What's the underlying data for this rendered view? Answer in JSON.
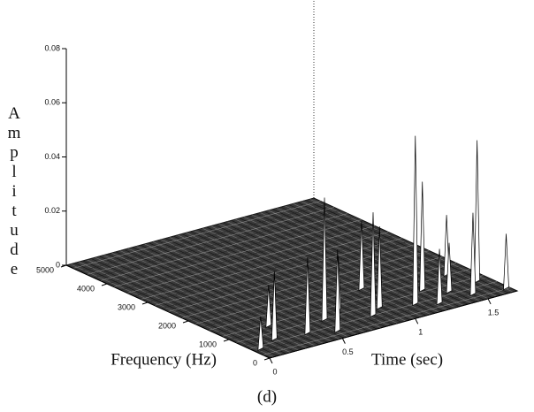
{
  "chart_data": {
    "type": "waterfall3d",
    "z_label": "Amplitude",
    "y_label": "Frequency (Hz)",
    "x_label": "Time (sec)",
    "caption": "(d)",
    "xlim": [
      0,
      1.7
    ],
    "xticks": [
      0,
      0.5,
      1,
      1.5
    ],
    "ylim": [
      0,
      5000
    ],
    "yticks": [
      0,
      1000,
      2000,
      3000,
      4000,
      5000
    ],
    "zlim": [
      0,
      0.08
    ],
    "zticks": [
      0,
      0.02,
      0.04,
      0.06,
      0.08
    ],
    "x": [
      1.14,
      1.62,
      1.48,
      1.3,
      0.85,
      0.95,
      0.55,
      0.6,
      0.4,
      0.2,
      1.05,
      1.25,
      1.55,
      1.68,
      0.75,
      0.3,
      1.4,
      0.05
    ],
    "y": [
      500,
      700,
      300,
      900,
      500,
      700,
      300,
      800,
      500,
      600,
      1500,
      300,
      1200,
      200,
      1000,
      1100,
      600,
      400
    ],
    "values": [
      0.062,
      0.052,
      0.03,
      0.04,
      0.038,
      0.03,
      0.03,
      0.045,
      0.028,
      0.025,
      0.025,
      0.02,
      0.022,
      0.02,
      0.02,
      0.015,
      0.018,
      0.012
    ],
    "color": "#ffffff"
  }
}
